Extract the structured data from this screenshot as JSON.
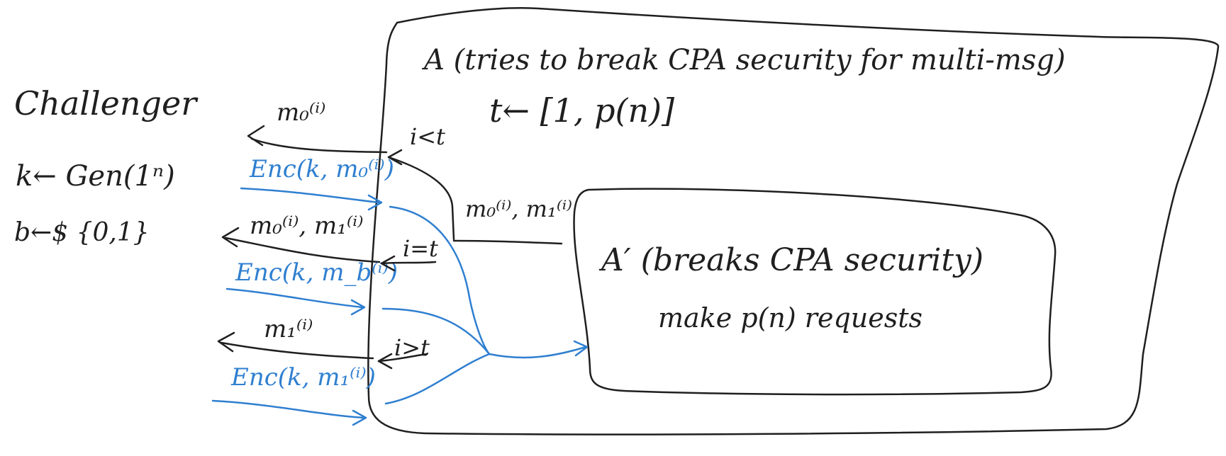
{
  "challenger": {
    "title": "Challenger",
    "line1": "k← Gen(1ⁿ)",
    "line2": "b←$ {0,1}"
  },
  "adversary": {
    "title": "A (tries to break CPA security for multi-msg)",
    "step": "t← [1, p(n)]"
  },
  "inner_adversary": {
    "title": "A′ (breaks CPA security)",
    "body": "make p(n) requests"
  },
  "messages": {
    "m0": "m₀⁽ⁱ⁾",
    "enc_m0": "Enc(k, m₀⁽ⁱ⁾)",
    "m0_m1": "m₀⁽ⁱ⁾, m₁⁽ⁱ⁾",
    "enc_mb": "Enc(k, m_b⁽ⁱ⁾)",
    "m1": "m₁⁽ⁱ⁾",
    "enc_m1": "Enc(k, m₁⁽ⁱ⁾)",
    "pair_to_inner": "m₀⁽ⁱ⁾, m₁⁽ⁱ⁾"
  },
  "conditions": {
    "lt": "i<t",
    "eq": "i=t",
    "gt": "i>t"
  },
  "colors": {
    "ink": "#1f1f1f",
    "blue": "#2f7fd0",
    "background": "#ffffff"
  }
}
